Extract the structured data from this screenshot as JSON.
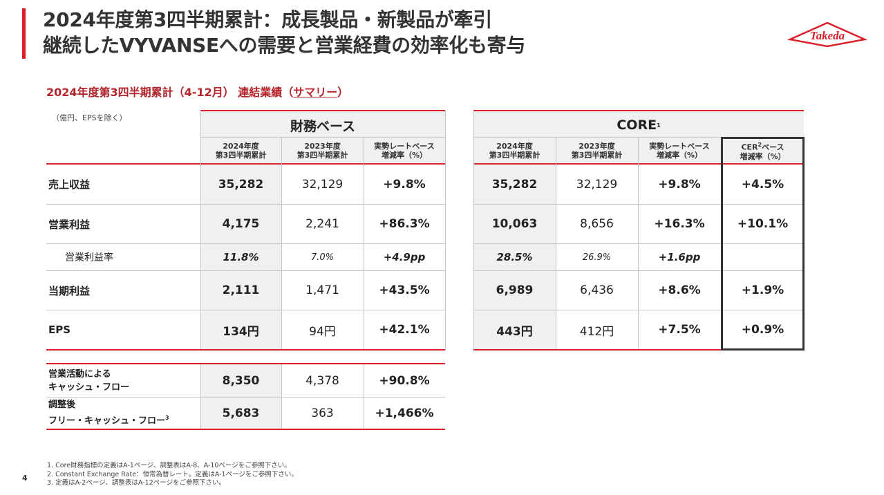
{
  "title": {
    "line1": "2024年度第3四半期累計：成長製品・新製品が牽引",
    "line2": "継続したVYVANSEへの需要と営業経費の効率化も寄与"
  },
  "logo": {
    "text": "Takeda",
    "color": "#d9202b"
  },
  "subtitle": {
    "prefix": "2024年度第3四半期累計（4-12月） 連結業績（",
    "underlined": "サマリー",
    "suffix": "）"
  },
  "unit_note": "（億円、EPSを除く）",
  "financial": {
    "group_label": "財務ベース",
    "columns": [
      "2024年度\n第3四半期累計",
      "2023年度\n第3四半期累計",
      "実勢レートベース\n増減率（%）"
    ]
  },
  "core": {
    "group_label": "CORE",
    "group_sup": "1",
    "columns": [
      "2024年度\n第3四半期累計",
      "2023年度\n第3四半期累計",
      "実勢レートベース\n増減率（%）"
    ],
    "cer_label": "CER",
    "cer_sup": "2",
    "cer_label_rest": "ベース\n増減率（%）"
  },
  "rows": [
    {
      "label": "売上収益",
      "fin": [
        "35,282",
        "32,129",
        "+9.8%"
      ],
      "core": [
        "35,282",
        "32,129",
        "+9.8%",
        "+4.5%"
      ]
    },
    {
      "label": "営業利益",
      "fin": [
        "4,175",
        "2,241",
        "+86.3%"
      ],
      "core": [
        "10,063",
        "8,656",
        "+16.3%",
        "+10.1%"
      ]
    },
    {
      "label": "営業利益率",
      "fin": [
        "11.8%",
        "7.0%",
        "+4.9pp"
      ],
      "core": [
        "28.5%",
        "26.9%",
        "+1.6pp",
        ""
      ]
    },
    {
      "label": "当期利益",
      "fin": [
        "2,111",
        "1,471",
        "+43.5%"
      ],
      "core": [
        "6,989",
        "6,436",
        "+8.6%",
        "+1.9%"
      ]
    },
    {
      "label": "EPS",
      "fin": [
        "134円",
        "94円",
        "+42.1%"
      ],
      "core": [
        "443円",
        "412円",
        "+7.5%",
        "+0.9%"
      ]
    }
  ],
  "cashflow": [
    {
      "label": "営業活動による\nキャッシュ・フロー",
      "values": [
        "8,350",
        "4,378",
        "+90.8%"
      ]
    },
    {
      "label": "調整後\nフリー・キャッシュ・フロー",
      "sup": "3",
      "values": [
        "5,683",
        "363",
        "+1,466%"
      ]
    }
  ],
  "footnotes": [
    "1. Core財務指標の定義はA-1ページ、調整表はA-8、A-10ページをご参照下さい。",
    "2. Constant Exchange Rate：恒常為替レート。定義はA-1ページをご参照下さい。",
    "3. 定義はA-2ページ、調整表はA-12ページをご参照下さい。"
  ],
  "page_number": "4"
}
